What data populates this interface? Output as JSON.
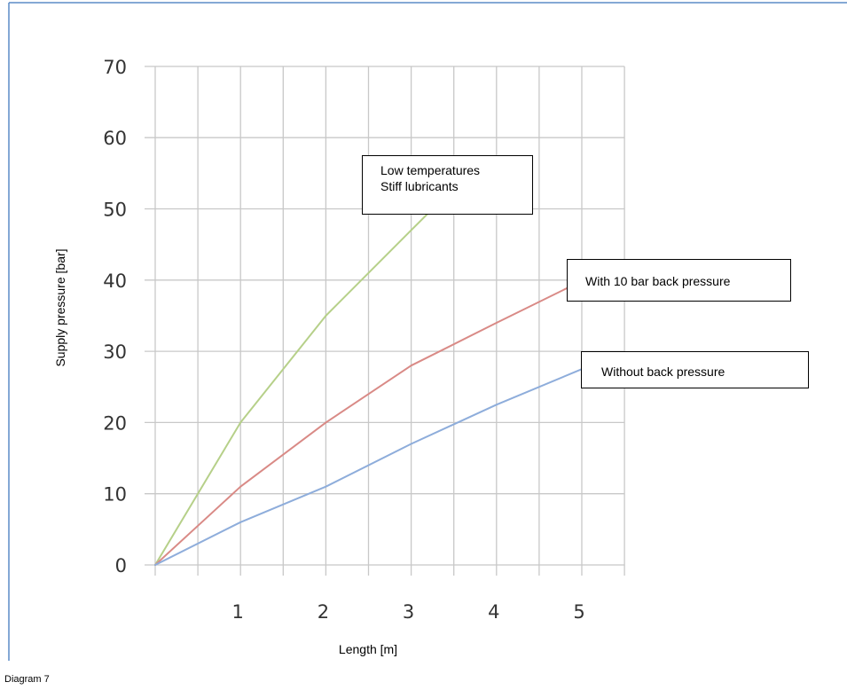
{
  "chart_data": {
    "type": "line",
    "xlabel": "Length [m]",
    "ylabel": "Supply pressure [bar]",
    "xlim": [
      0,
      5.5
    ],
    "ylim": [
      0,
      70
    ],
    "x_ticks": [
      "1",
      "2",
      "3",
      "4",
      "5"
    ],
    "y_ticks": [
      "0",
      "10",
      "20",
      "30",
      "40",
      "50",
      "60",
      "70"
    ],
    "grid": true,
    "series": [
      {
        "label_ref": "annotations.0",
        "color": "#b6d089",
        "x": [
          0,
          1,
          2,
          3,
          3.25
        ],
        "y": [
          0,
          20,
          35,
          47,
          50
        ]
      },
      {
        "label_ref": "annotations.1",
        "color": "#d98a86",
        "x": [
          0,
          1,
          2,
          3,
          4,
          4.85
        ],
        "y": [
          0,
          11,
          20,
          28,
          34,
          39
        ]
      },
      {
        "label_ref": "annotations.2",
        "color": "#8eaddb",
        "x": [
          0,
          1,
          2,
          3,
          4,
          5
        ],
        "y": [
          0,
          6,
          11,
          17,
          22.5,
          27.5
        ]
      }
    ],
    "annotations": [
      {
        "lines": [
          "Low temperatures",
          "Stiff lubricants"
        ]
      },
      {
        "lines": [
          "With 10 bar back pressure"
        ]
      },
      {
        "lines": [
          "Without back pressure"
        ]
      }
    ]
  },
  "caption": "Diagram 7"
}
